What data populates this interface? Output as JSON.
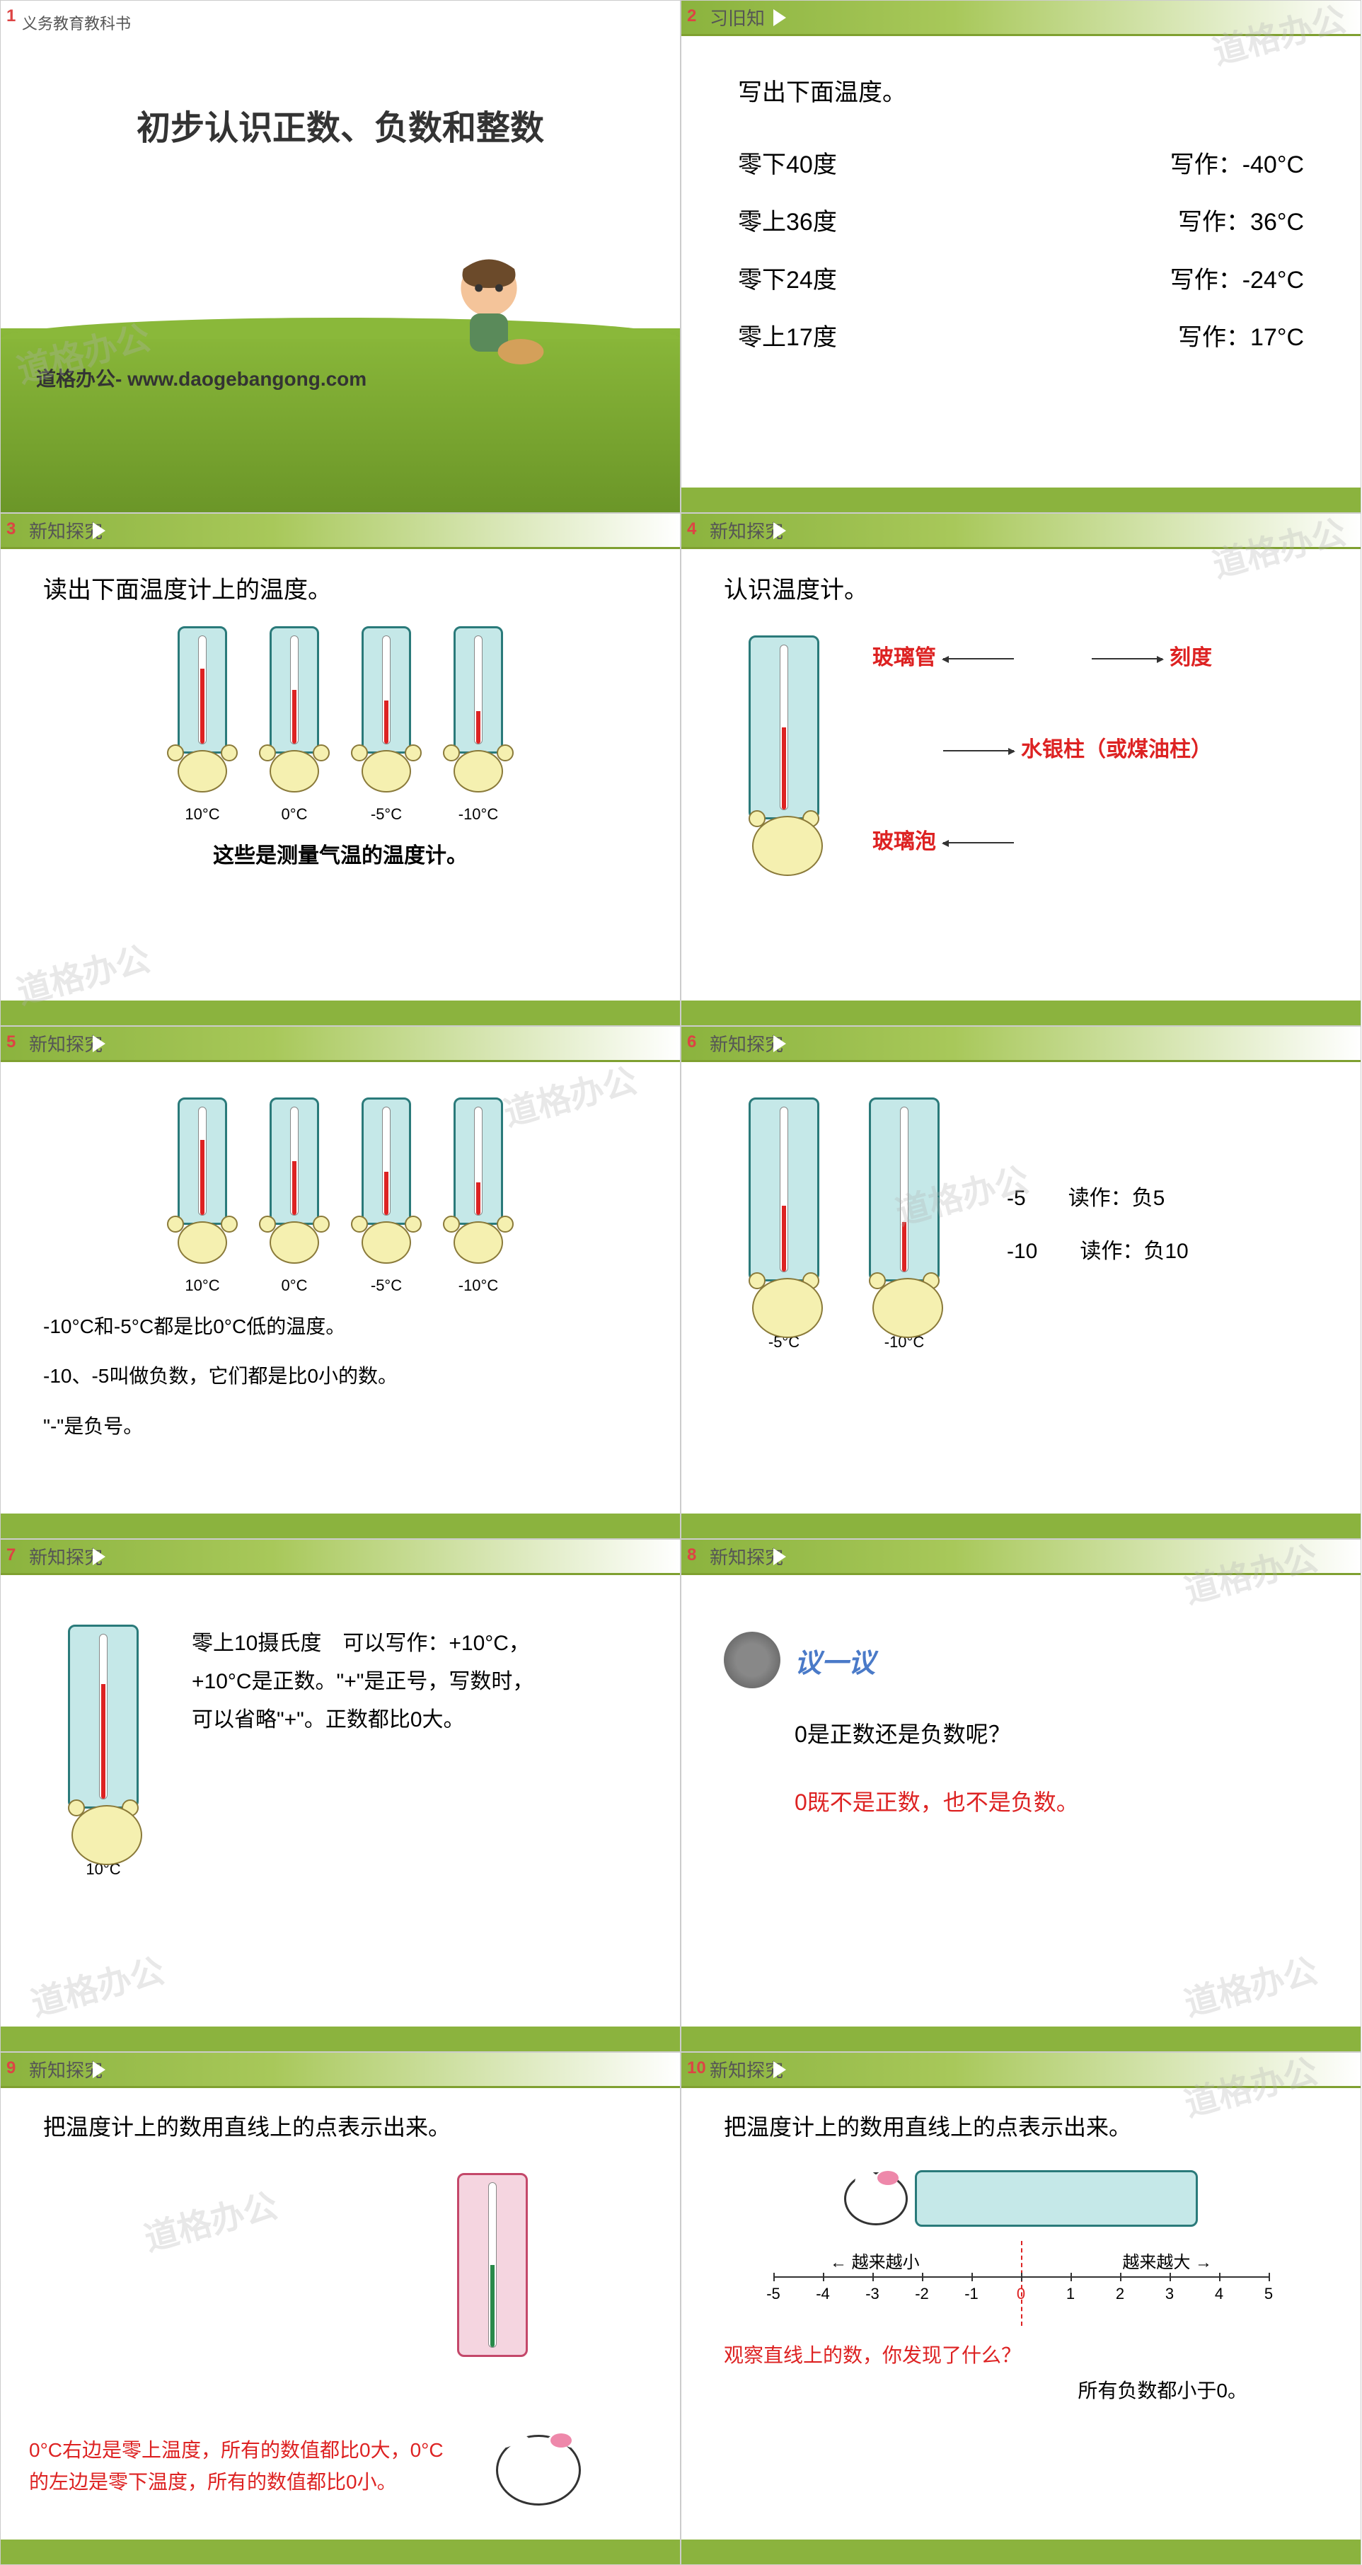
{
  "watermark_text": "道格办公",
  "headers": {
    "review": "习旧知",
    "explore": "新知探究"
  },
  "s1": {
    "subtitle": "义务教育教科书",
    "title": "初步认识正数、负数和整数",
    "url": "道格办公- www.daogebangong.com"
  },
  "s2": {
    "title": "写出下面温度。",
    "rows": [
      {
        "l": "零下40度",
        "r": "写作：-40°C"
      },
      {
        "l": "零上36度",
        "r": "写作：36°C"
      },
      {
        "l": "零下24度",
        "r": "写作：-24°C"
      },
      {
        "l": "零上17度",
        "r": "写作：17°C"
      }
    ]
  },
  "s3": {
    "title": "读出下面温度计上的温度。",
    "temps": [
      {
        "label": "10°C",
        "height": 70
      },
      {
        "label": "0°C",
        "height": 50
      },
      {
        "label": "-5°C",
        "height": 40
      },
      {
        "label": "-10°C",
        "height": 30
      }
    ],
    "caption": "这些是测量气温的温度计。"
  },
  "s4": {
    "title": "认识温度计。",
    "labels": {
      "glass_tube": "玻璃管",
      "scale": "刻度",
      "mercury": "水银柱（或煤油柱）",
      "bulb": "玻璃泡"
    }
  },
  "s5": {
    "temps": [
      {
        "label": "10°C",
        "height": 70
      },
      {
        "label": "0°C",
        "height": 50
      },
      {
        "label": "-5°C",
        "height": 40
      },
      {
        "label": "-10°C",
        "height": 30
      }
    ],
    "text1": "-10°C和-5°C都是比0°C低的温度。",
    "text2": "-10、-5叫做负数，它们都是比0小的数。",
    "text3": "\"-\"是负号。"
  },
  "s6": {
    "temps": [
      {
        "label": "-5°C",
        "height": 40
      },
      {
        "label": "-10°C",
        "height": 30
      }
    ],
    "rows": [
      {
        "num": "-5",
        "read": "读作：负5"
      },
      {
        "num": "-10",
        "read": "读作：负10"
      }
    ]
  },
  "s7": {
    "temp": {
      "label": "10°C",
      "height": 70
    },
    "text": "零上10摄氏度　可以写作：+10°C，+10°C是正数。\"+\"是正号，写数时，可以省略\"+\"。正数都比0大。"
  },
  "s8": {
    "discuss": "议一议",
    "question": "0是正数还是负数呢？",
    "answer": "0既不是正数，也不是负数。"
  },
  "s9": {
    "title": "把温度计上的数用直线上的点表示出来。",
    "text": "0°C右边是零上温度，所有的数值都比0大，0°C的左边是零下温度，所有的数值都比0小。"
  },
  "s10": {
    "title": "把温度计上的数用直线上的点表示出来。",
    "smaller": "越来越小",
    "bigger": "越来越大",
    "ticks": [
      "-5",
      "-4",
      "-3",
      "-2",
      "-1",
      "0",
      "1",
      "2",
      "3",
      "4",
      "5"
    ],
    "question": "观察直线上的数，你发现了什么？",
    "answer": "所有负数都小于0。"
  }
}
